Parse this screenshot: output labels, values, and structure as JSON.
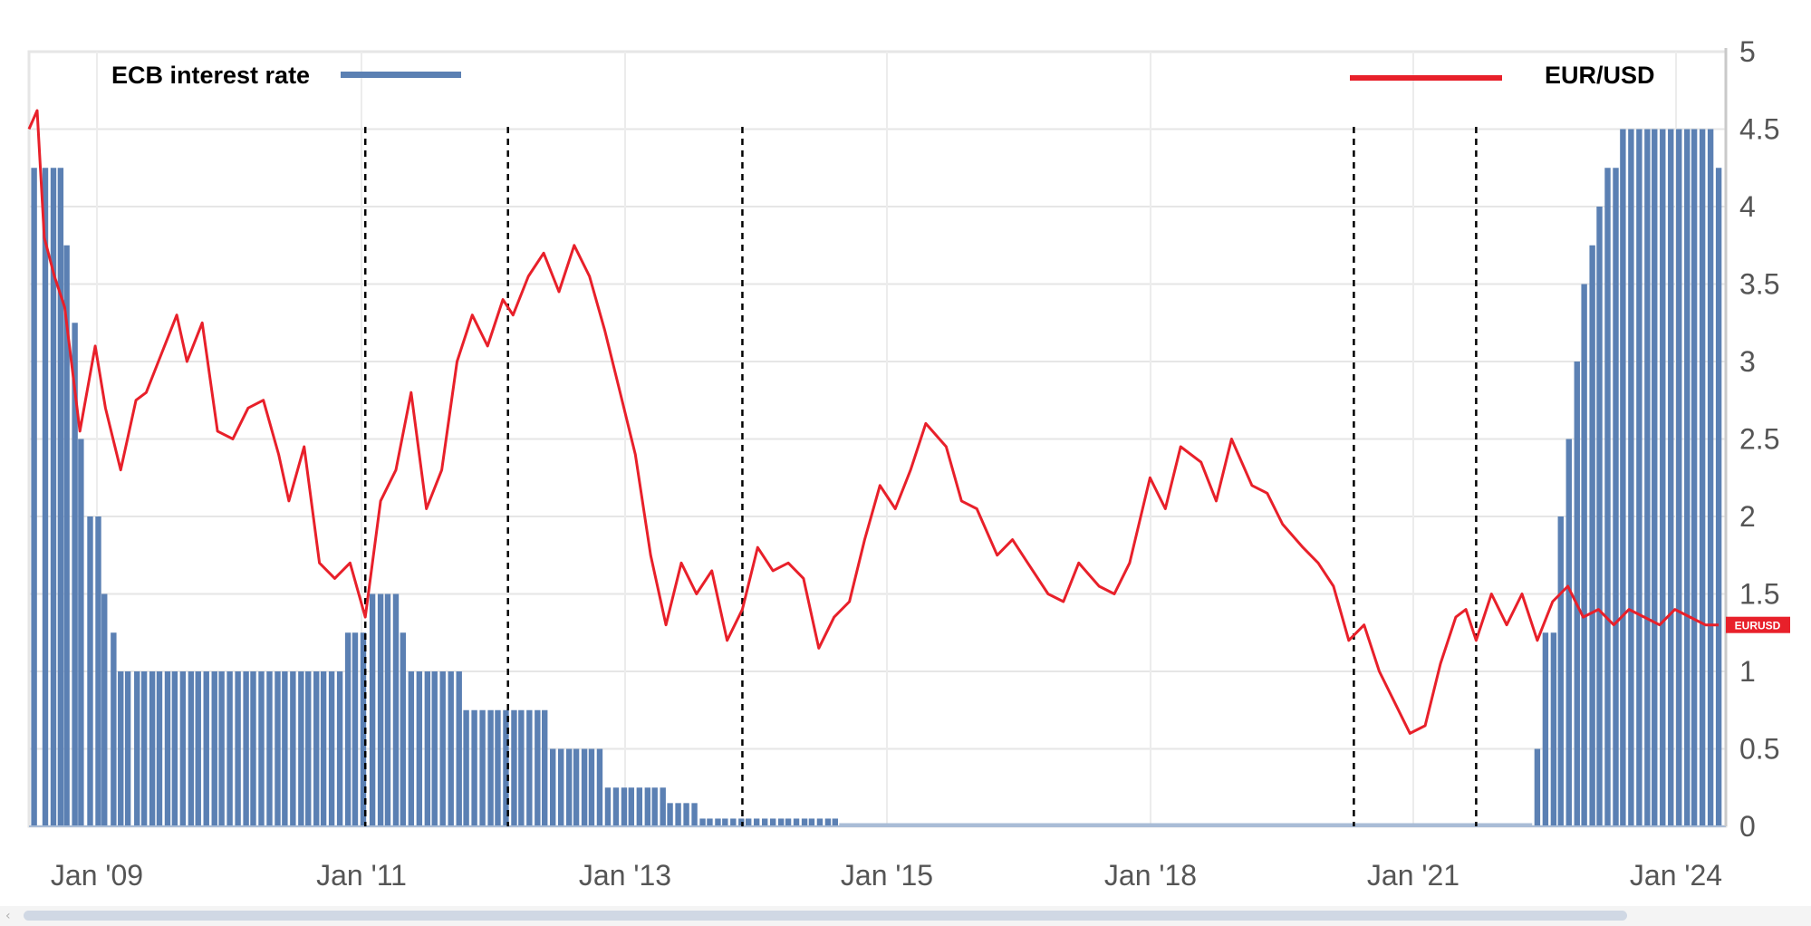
{
  "chart_data": {
    "type": "bar+line",
    "title": "",
    "y_axis": {
      "position": "right",
      "min": 0,
      "max": 5,
      "ticks": [
        "0",
        "0.5",
        "1",
        "1.5",
        "2",
        "2.5",
        "3",
        "3.5",
        "4",
        "4.5",
        "5"
      ]
    },
    "x_axis": {
      "ticks": [
        "Jan '09",
        "Jan '11",
        "Jan '13",
        "Jan '15",
        "Jan '18",
        "Jan '21",
        "Jan '24"
      ]
    },
    "grid": true,
    "legend": [
      {
        "label": "ECB interest rate",
        "color": "#5b80b3",
        "kind": "bar",
        "placement": "top-left"
      },
      {
        "label": "EUR/USD",
        "color": "#e8202a",
        "kind": "line",
        "placement": "top-right"
      }
    ],
    "badge": {
      "text": "EURUSD",
      "value": 1.3
    },
    "turning_points": [
      2011.3,
      2012.7,
      2015.0,
      2021.0,
      2022.2
    ],
    "x_range": [
      2008.0,
      2024.65
    ],
    "ecb_rate": {
      "x": [
        2008.05,
        2008.16,
        2008.24,
        2008.31,
        2008.37,
        2008.45,
        2008.51,
        2008.6,
        2008.68,
        2008.74,
        2008.83,
        2008.9,
        2008.97,
        2009.06,
        2009.13,
        2009.21,
        2009.28,
        2009.36,
        2009.43,
        2009.51,
        2009.59,
        2009.66,
        2009.74,
        2009.82,
        2009.89,
        2009.97,
        2010.05,
        2010.13,
        2010.2,
        2010.28,
        2010.36,
        2010.44,
        2010.51,
        2010.59,
        2010.67,
        2010.74,
        2010.82,
        2010.89,
        2010.97,
        2011.05,
        2011.13,
        2011.2,
        2011.28,
        2011.37,
        2011.45,
        2011.52,
        2011.6,
        2011.67,
        2011.75,
        2011.83,
        2011.91,
        2011.98,
        2012.06,
        2012.14,
        2012.22,
        2012.29,
        2012.37,
        2012.45,
        2012.53,
        2012.6,
        2012.68,
        2012.76,
        2012.83,
        2012.91,
        2012.99,
        2013.06,
        2013.14,
        2013.22,
        2013.3,
        2013.37,
        2013.45,
        2013.52,
        2013.6,
        2013.68,
        2013.76,
        2013.84,
        2013.91,
        2013.99,
        2014.07,
        2014.14,
        2014.22,
        2014.29,
        2014.37,
        2014.45,
        2014.53,
        2014.61,
        2014.68,
        2014.76,
        2014.83,
        2014.91,
        2014.99,
        2015.06,
        2015.14,
        2015.22,
        2015.3,
        2015.38,
        2015.45,
        2015.53,
        2015.61,
        2015.68,
        2015.76,
        2015.84,
        2015.91,
        2022.8,
        2022.88,
        2022.96,
        2023.03,
        2023.11,
        2023.19,
        2023.26,
        2023.34,
        2023.41,
        2023.49,
        2023.57,
        2023.64,
        2023.72,
        2023.8,
        2023.88,
        2023.95,
        2024.03,
        2024.11,
        2024.19,
        2024.27,
        2024.34,
        2024.42,
        2024.5,
        2024.58
      ],
      "values": [
        4.25,
        4.25,
        4.25,
        4.25,
        3.75,
        3.25,
        2.5,
        2.0,
        2.0,
        1.5,
        1.25,
        1.0,
        1.0,
        1.0,
        1.0,
        1.0,
        1.0,
        1.0,
        1.0,
        1.0,
        1.0,
        1.0,
        1.0,
        1.0,
        1.0,
        1.0,
        1.0,
        1.0,
        1.0,
        1.0,
        1.0,
        1.0,
        1.0,
        1.0,
        1.0,
        1.0,
        1.0,
        1.0,
        1.0,
        1.0,
        1.25,
        1.25,
        1.25,
        1.5,
        1.5,
        1.5,
        1.5,
        1.25,
        1.0,
        1.0,
        1.0,
        1.0,
        1.0,
        1.0,
        1.0,
        0.75,
        0.75,
        0.75,
        0.75,
        0.75,
        0.75,
        0.75,
        0.75,
        0.75,
        0.75,
        0.75,
        0.5,
        0.5,
        0.5,
        0.5,
        0.5,
        0.5,
        0.5,
        0.25,
        0.25,
        0.25,
        0.25,
        0.25,
        0.25,
        0.25,
        0.25,
        0.15,
        0.15,
        0.15,
        0.15,
        0.05,
        0.05,
        0.05,
        0.05,
        0.05,
        0.05,
        0.05,
        0.05,
        0.05,
        0.05,
        0.05,
        0.05,
        0.05,
        0.05,
        0.05,
        0.05,
        0.05,
        0.05,
        0.5,
        1.25,
        1.25,
        2.0,
        2.5,
        3.0,
        3.5,
        3.75,
        4.0,
        4.25,
        4.25,
        4.5,
        4.5,
        4.5,
        4.5,
        4.5,
        4.5,
        4.5,
        4.5,
        4.5,
        4.5,
        4.5,
        4.5,
        4.25
      ]
    },
    "eur_usd": {
      "x": [
        2008.0,
        2008.08,
        2008.15,
        2008.25,
        2008.35,
        2008.5,
        2008.65,
        2008.75,
        2008.9,
        2009.05,
        2009.15,
        2009.3,
        2009.45,
        2009.55,
        2009.7,
        2009.85,
        2010.0,
        2010.15,
        2010.3,
        2010.45,
        2010.55,
        2010.7,
        2010.85,
        2011.0,
        2011.15,
        2011.3,
        2011.45,
        2011.6,
        2011.75,
        2011.9,
        2012.05,
        2012.2,
        2012.35,
        2012.5,
        2012.65,
        2012.75,
        2012.9,
        2013.05,
        2013.2,
        2013.35,
        2013.5,
        2013.65,
        2013.8,
        2013.95,
        2014.1,
        2014.25,
        2014.4,
        2014.55,
        2014.7,
        2014.85,
        2015.0,
        2015.15,
        2015.3,
        2015.45,
        2015.6,
        2015.75,
        2015.9,
        2016.05,
        2016.2,
        2016.35,
        2016.5,
        2016.65,
        2016.8,
        2017.0,
        2017.15,
        2017.3,
        2017.5,
        2017.65,
        2017.8,
        2018.0,
        2018.15,
        2018.3,
        2018.5,
        2018.65,
        2018.8,
        2019.0,
        2019.15,
        2019.3,
        2019.5,
        2019.65,
        2019.8,
        2020.0,
        2020.15,
        2020.3,
        2020.5,
        2020.65,
        2020.8,
        2020.95,
        2021.1,
        2021.25,
        2021.4,
        2021.55,
        2021.7,
        2021.85,
        2022.0,
        2022.1,
        2022.2,
        2022.35,
        2022.5,
        2022.65,
        2022.8,
        2022.95,
        2023.1,
        2023.25,
        2023.4,
        2023.55,
        2023.7,
        2023.85,
        2024.0,
        2024.15,
        2024.3,
        2024.45,
        2024.58
      ],
      "values": [
        4.5,
        4.62,
        3.8,
        3.55,
        3.35,
        2.55,
        3.1,
        2.7,
        2.3,
        2.75,
        2.8,
        3.05,
        3.3,
        3.0,
        3.25,
        2.55,
        2.5,
        2.7,
        2.75,
        2.4,
        2.1,
        2.45,
        1.7,
        1.6,
        1.7,
        1.35,
        2.1,
        2.3,
        2.8,
        2.05,
        2.3,
        3.0,
        3.3,
        3.1,
        3.4,
        3.3,
        3.55,
        3.7,
        3.45,
        3.75,
        3.55,
        3.2,
        2.8,
        2.4,
        1.75,
        1.3,
        1.7,
        1.5,
        1.65,
        1.2,
        1.4,
        1.8,
        1.65,
        1.7,
        1.6,
        1.15,
        1.35,
        1.45,
        1.85,
        2.2,
        2.05,
        2.3,
        2.6,
        2.45,
        2.1,
        2.05,
        1.75,
        1.85,
        1.7,
        1.5,
        1.45,
        1.7,
        1.55,
        1.5,
        1.7,
        2.25,
        2.05,
        2.45,
        2.35,
        2.1,
        2.5,
        2.2,
        2.15,
        1.95,
        1.8,
        1.7,
        1.55,
        1.2,
        1.3,
        1.0,
        0.8,
        0.6,
        0.65,
        1.05,
        1.35,
        1.4,
        1.2,
        1.5,
        1.3,
        1.5,
        1.2,
        1.45,
        1.55,
        1.35,
        1.4,
        1.3,
        1.4,
        1.35,
        1.3,
        1.4,
        1.35,
        1.3,
        1.3
      ]
    }
  }
}
